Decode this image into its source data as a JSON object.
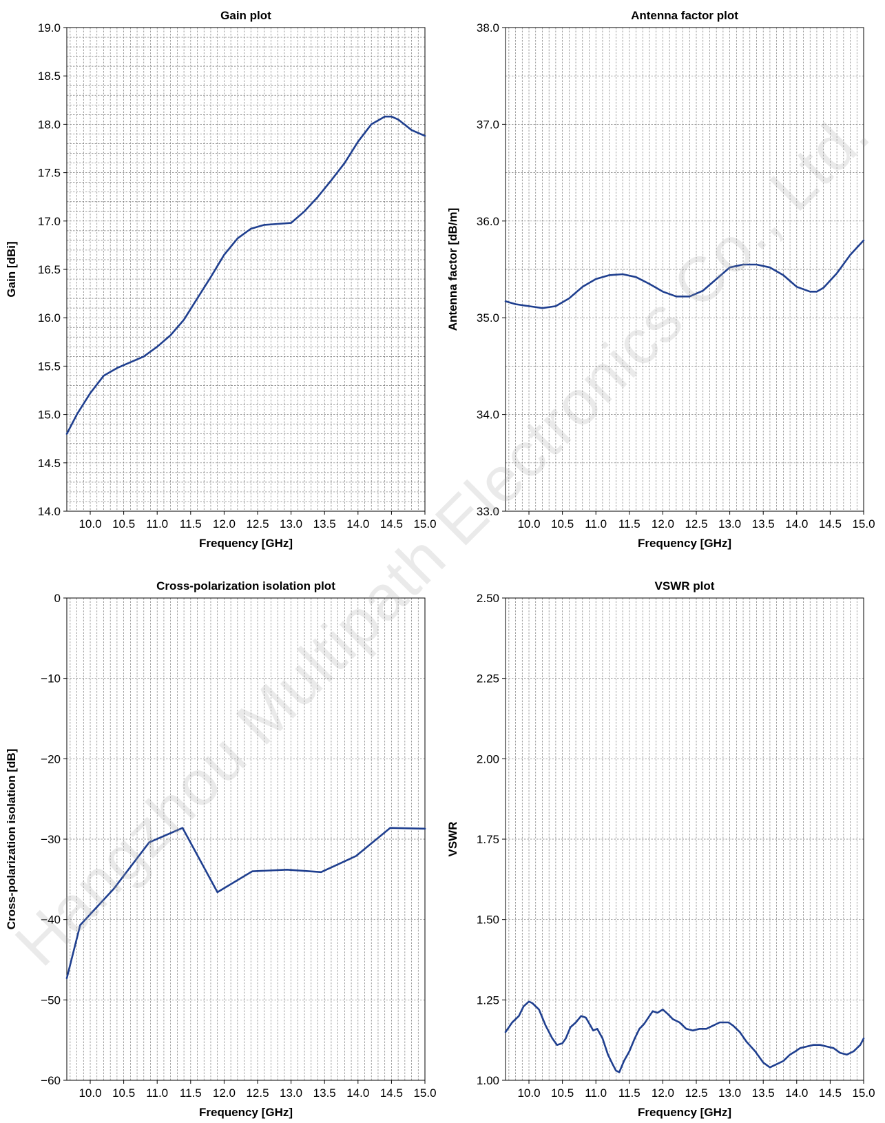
{
  "watermark": "Hangzhou Multipath Electronics Co., Ltd.",
  "colors": {
    "line": "#1f3f8f",
    "grid": "#777777",
    "axis": "#000000"
  },
  "chart_data": [
    {
      "type": "line",
      "title": "Gain plot",
      "xlabel": "Frequency [GHz]",
      "ylabel": "Gain [dBi]",
      "xlim": [
        9.65,
        15.0
      ],
      "ylim": [
        14.0,
        19.0
      ],
      "xticks": [
        10.0,
        10.5,
        11.0,
        11.5,
        12.0,
        12.5,
        13.0,
        13.5,
        14.0,
        14.5,
        15.0
      ],
      "xtick_labels": [
        "10.0",
        "10.5",
        "11.0",
        "11.5",
        "12.0",
        "12.5",
        "13.0",
        "13.5",
        "14.0",
        "14.5",
        "15.0"
      ],
      "yticks": [
        14.0,
        14.5,
        15.0,
        15.5,
        16.0,
        16.5,
        17.0,
        17.5,
        18.0,
        18.5,
        19.0
      ],
      "ytick_labels": [
        "14.0",
        "14.5",
        "15.0",
        "15.5",
        "16.0",
        "16.5",
        "17.0",
        "17.5",
        "18.0",
        "18.5",
        "19.0"
      ],
      "grid": "dashed, minor x 0.1 GHz, minor y 0.1",
      "series": [
        {
          "x": [
            9.65,
            9.8,
            10.0,
            10.2,
            10.4,
            10.6,
            10.8,
            11.0,
            11.2,
            11.4,
            11.6,
            11.8,
            12.0,
            12.2,
            12.4,
            12.6,
            12.8,
            13.0,
            13.2,
            13.4,
            13.6,
            13.8,
            14.0,
            14.2,
            14.4,
            14.5,
            14.6,
            14.8,
            15.0
          ],
          "y": [
            14.8,
            15.0,
            15.22,
            15.4,
            15.48,
            15.54,
            15.6,
            15.7,
            15.82,
            15.98,
            16.2,
            16.42,
            16.65,
            16.82,
            16.92,
            16.96,
            16.97,
            16.98,
            17.1,
            17.25,
            17.42,
            17.6,
            17.82,
            18.0,
            18.08,
            18.08,
            18.05,
            17.94,
            17.88
          ]
        }
      ]
    },
    {
      "type": "line",
      "title": "Antenna factor plot",
      "xlabel": "Frequency [GHz]",
      "ylabel": "Antenna factor [dB/m]",
      "xlim": [
        9.65,
        15.0
      ],
      "ylim": [
        33.0,
        38.0
      ],
      "xticks": [
        10.0,
        10.5,
        11.0,
        11.5,
        12.0,
        12.5,
        13.0,
        13.5,
        14.0,
        14.5,
        15.0
      ],
      "xtick_labels": [
        "10.0",
        "10.5",
        "11.0",
        "11.5",
        "12.0",
        "12.5",
        "13.0",
        "13.5",
        "14.0",
        "14.5",
        "15.0"
      ],
      "yticks": [
        33.0,
        34.0,
        35.0,
        36.0,
        37.0,
        38.0
      ],
      "ytick_labels": [
        "33.0",
        "34.0",
        "35.0",
        "36.0",
        "37.0",
        "38.0"
      ],
      "grid": "dashed, minor x 0.1 GHz, minor y 0.5",
      "series": [
        {
          "x": [
            9.65,
            9.8,
            10.0,
            10.2,
            10.4,
            10.6,
            10.8,
            11.0,
            11.2,
            11.4,
            11.6,
            11.8,
            12.0,
            12.2,
            12.4,
            12.6,
            12.8,
            13.0,
            13.2,
            13.4,
            13.6,
            13.8,
            14.0,
            14.2,
            14.3,
            14.4,
            14.6,
            14.8,
            15.0
          ],
          "y": [
            35.17,
            35.14,
            35.12,
            35.1,
            35.12,
            35.2,
            35.32,
            35.4,
            35.44,
            35.45,
            35.42,
            35.35,
            35.27,
            35.22,
            35.22,
            35.28,
            35.4,
            35.52,
            35.55,
            35.55,
            35.52,
            35.44,
            35.32,
            35.27,
            35.27,
            35.31,
            35.46,
            35.65,
            35.8
          ]
        }
      ]
    },
    {
      "type": "line",
      "title": "Cross-polarization isolation plot",
      "xlabel": "Frequency [GHz]",
      "ylabel": "Cross-polarization isolation [dB]",
      "xlim": [
        9.65,
        15.0
      ],
      "ylim": [
        -60,
        0
      ],
      "xticks": [
        10.0,
        10.5,
        11.0,
        11.5,
        12.0,
        12.5,
        13.0,
        13.5,
        14.0,
        14.5,
        15.0
      ],
      "xtick_labels": [
        "10.0",
        "10.5",
        "11.0",
        "11.5",
        "12.0",
        "12.5",
        "13.0",
        "13.5",
        "14.0",
        "14.5",
        "15.0"
      ],
      "yticks": [
        -60,
        -50,
        -40,
        -30,
        -20,
        -10,
        0
      ],
      "ytick_labels": [
        "−60",
        "−50",
        "−40",
        "−30",
        "−20",
        "−10",
        "0"
      ],
      "grid": "dashed, minor x 0.1 GHz",
      "series": [
        {
          "x": [
            9.65,
            9.85,
            10.35,
            10.88,
            11.38,
            11.9,
            12.42,
            12.94,
            13.45,
            13.97,
            14.48,
            15.0
          ],
          "y": [
            -47.3,
            -40.7,
            -36.2,
            -30.4,
            -28.6,
            -36.6,
            -34.0,
            -33.8,
            -34.1,
            -32.1,
            -28.6,
            -28.7
          ]
        }
      ]
    },
    {
      "type": "line",
      "title": "VSWR plot",
      "xlabel": "Frequency [GHz]",
      "ylabel": "VSWR",
      "xlim": [
        9.65,
        15.0
      ],
      "ylim": [
        1.0,
        2.5
      ],
      "xticks": [
        10.0,
        10.5,
        11.0,
        11.5,
        12.0,
        12.5,
        13.0,
        13.5,
        14.0,
        14.5,
        15.0
      ],
      "xtick_labels": [
        "10.0",
        "10.5",
        "11.0",
        "11.5",
        "12.0",
        "12.5",
        "13.0",
        "13.5",
        "14.0",
        "14.5",
        "15.0"
      ],
      "yticks": [
        1.0,
        1.25,
        1.5,
        1.75,
        2.0,
        2.25,
        2.5
      ],
      "ytick_labels": [
        "1.00",
        "1.25",
        "1.50",
        "1.75",
        "2.00",
        "2.25",
        "2.50"
      ],
      "grid": "dashed, minor x 0.1 GHz",
      "series": [
        {
          "x": [
            9.65,
            9.75,
            9.85,
            9.92,
            10.0,
            10.05,
            10.15,
            10.25,
            10.35,
            10.42,
            10.5,
            10.55,
            10.62,
            10.7,
            10.78,
            10.85,
            10.92,
            10.96,
            11.02,
            11.1,
            11.18,
            11.25,
            11.3,
            11.35,
            11.42,
            11.5,
            11.58,
            11.65,
            11.72,
            11.8,
            11.85,
            11.92,
            12.0,
            12.08,
            12.15,
            12.25,
            12.35,
            12.45,
            12.55,
            12.65,
            12.75,
            12.85,
            12.92,
            12.98,
            13.05,
            13.15,
            13.25,
            13.38,
            13.5,
            13.6,
            13.7,
            13.8,
            13.9,
            13.98,
            14.05,
            14.15,
            14.25,
            14.35,
            14.45,
            14.55,
            14.65,
            14.75,
            14.85,
            14.95,
            15.0
          ],
          "y": [
            1.15,
            1.18,
            1.2,
            1.23,
            1.245,
            1.24,
            1.22,
            1.17,
            1.13,
            1.11,
            1.115,
            1.13,
            1.165,
            1.18,
            1.2,
            1.195,
            1.17,
            1.155,
            1.16,
            1.13,
            1.08,
            1.05,
            1.03,
            1.025,
            1.06,
            1.09,
            1.13,
            1.16,
            1.175,
            1.2,
            1.215,
            1.21,
            1.22,
            1.205,
            1.19,
            1.18,
            1.16,
            1.155,
            1.16,
            1.16,
            1.17,
            1.18,
            1.18,
            1.18,
            1.17,
            1.15,
            1.12,
            1.09,
            1.055,
            1.04,
            1.05,
            1.06,
            1.08,
            1.09,
            1.1,
            1.105,
            1.11,
            1.11,
            1.105,
            1.1,
            1.085,
            1.08,
            1.09,
            1.11,
            1.13
          ]
        }
      ]
    }
  ]
}
